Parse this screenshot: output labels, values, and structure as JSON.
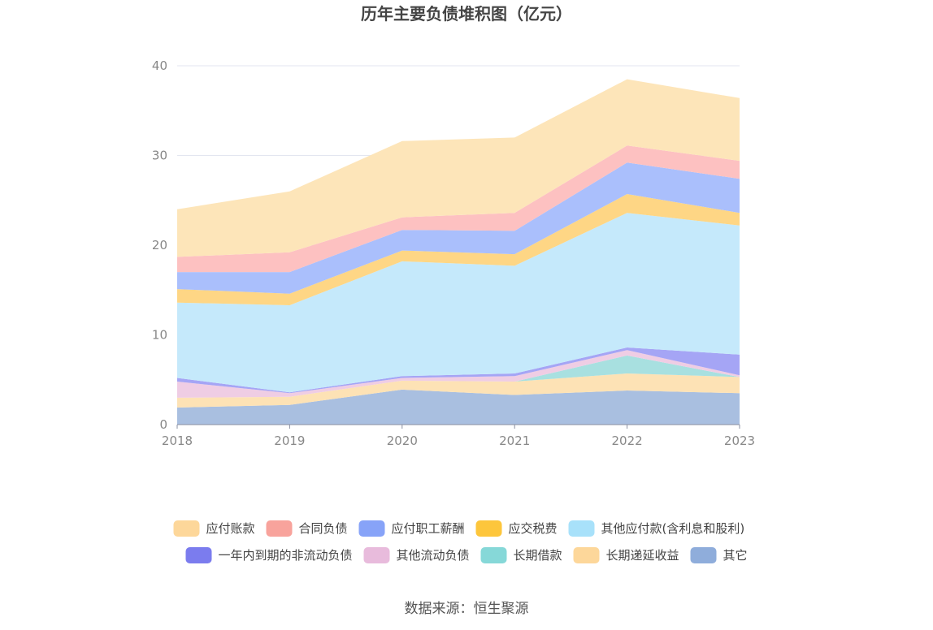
{
  "chart_data": {
    "type": "area",
    "stacked": true,
    "title": "历年主要负债堆积图（亿元）",
    "xlabel": "",
    "ylabel": "",
    "x": [
      "2018",
      "2019",
      "2020",
      "2021",
      "2022",
      "2023"
    ],
    "ylim": [
      0,
      40
    ],
    "yticks": [
      "0",
      "10",
      "20",
      "30",
      "40"
    ],
    "grid": true,
    "legend_position": "bottom",
    "series": [
      {
        "name": "其它",
        "color": "#a9bfe0",
        "values": [
          1.9,
          2.2,
          3.9,
          3.3,
          3.8,
          3.5
        ]
      },
      {
        "name": "长期递延收益",
        "color": "#fde2b5",
        "values": [
          1.1,
          0.9,
          1.0,
          1.5,
          1.9,
          1.8
        ]
      },
      {
        "name": "长期借款",
        "color": "#a8e0e0",
        "values": [
          0.0,
          0.0,
          0.0,
          0.0,
          2.0,
          0.0
        ]
      },
      {
        "name": "其他流动负债",
        "color": "#efcde4",
        "values": [
          1.8,
          0.4,
          0.3,
          0.6,
          0.6,
          0.2
        ]
      },
      {
        "name": "一年内到期的非流动负债",
        "color": "#a5a5f5",
        "values": [
          0.4,
          0.1,
          0.2,
          0.3,
          0.3,
          2.3
        ]
      },
      {
        "name": "其他应付款(含利息和股利)",
        "color": "#c5e9fb",
        "values": [
          8.4,
          9.7,
          12.8,
          12.0,
          15.0,
          14.4
        ]
      },
      {
        "name": "应交税费",
        "color": "#fed685",
        "values": [
          1.5,
          1.3,
          1.2,
          1.3,
          2.1,
          1.4
        ]
      },
      {
        "name": "应付职工薪酬",
        "color": "#aabffc",
        "values": [
          1.9,
          2.4,
          2.3,
          2.6,
          3.5,
          3.8
        ]
      },
      {
        "name": "合同负债",
        "color": "#fdc1c1",
        "values": [
          1.7,
          2.2,
          1.4,
          2.0,
          1.9,
          2.0
        ]
      },
      {
        "name": "应付账款",
        "color": "#fde5b9",
        "values": [
          5.3,
          6.8,
          8.5,
          8.4,
          7.4,
          7.0
        ]
      }
    ]
  },
  "legend": {
    "row1": [
      {
        "label": "应付账款",
        "color": "#fdd79a"
      },
      {
        "label": "合同负债",
        "color": "#f8a39c"
      },
      {
        "label": "应付职工薪酬",
        "color": "#87a3f8"
      },
      {
        "label": "应交税费",
        "color": "#fdc63c"
      },
      {
        "label": "其他应付款(含利息和股利)",
        "color": "#a8e1fa"
      }
    ],
    "row2": [
      {
        "label": "一年内到期的非流动负债",
        "color": "#7b7cee"
      },
      {
        "label": "其他流动负债",
        "color": "#e8bbdc"
      },
      {
        "label": "长期借款",
        "color": "#86d8d8"
      },
      {
        "label": "长期递延收益",
        "color": "#fdd79a"
      },
      {
        "label": "其它",
        "color": "#8faddb"
      }
    ]
  },
  "source": "数据来源：恒生聚源"
}
